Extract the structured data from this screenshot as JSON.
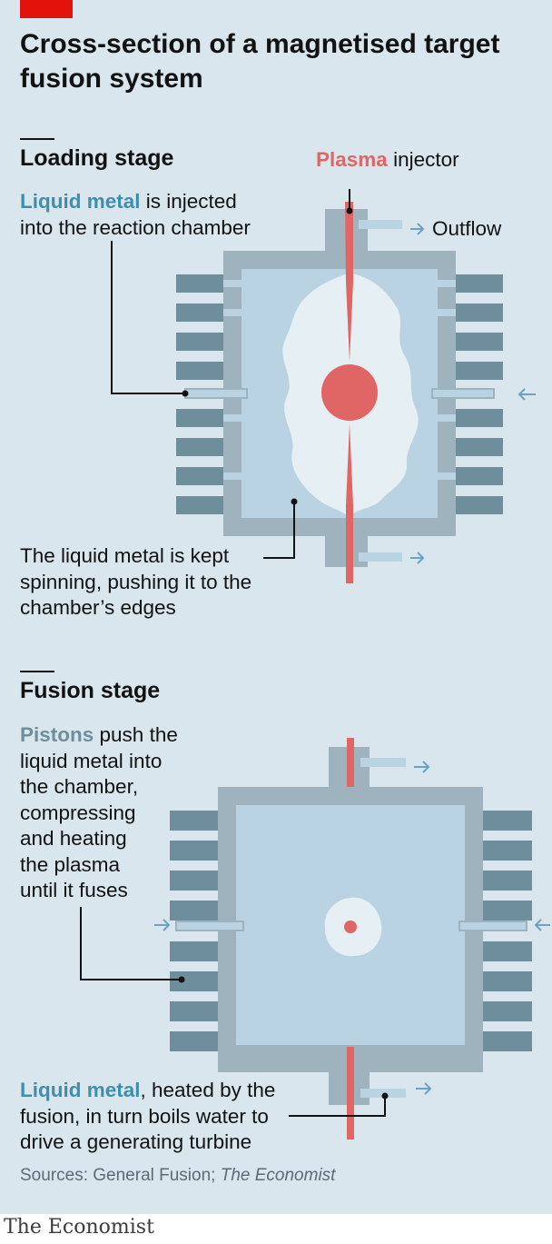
{
  "title": "Cross-section of a magnetised target fusion system",
  "loading": {
    "heading": "Loading stage",
    "plasma_injector": {
      "highlight": "Plasma",
      "rest": " injector"
    },
    "outflow": "Outflow",
    "liquid_note": {
      "highlight": "Liquid metal",
      "line1_rest": " is injected",
      "line2": "into the reaction chamber"
    },
    "spin_note": [
      "The liquid metal is kept",
      "spinning, pushing it to the",
      "chamber’s edges"
    ]
  },
  "fusion": {
    "heading": "Fusion stage",
    "piston_note": {
      "highlight": "Pistons",
      "line1_rest": " push the",
      "lines": [
        "liquid metal into",
        "the chamber,",
        "compressing",
        "and heating",
        "the plasma",
        "until it fuses"
      ]
    },
    "liquid_note": {
      "highlight": "Liquid metal",
      "line1_rest": ", heated by the",
      "line2": "fusion, in turn boils water to",
      "line3": "drive a generating turbine"
    }
  },
  "sources": {
    "prefix": "Sources: General Fusion; ",
    "italic": "The Economist"
  },
  "brand": "The Economist",
  "colors": {
    "background": "#d9e6ee",
    "accent_red": "#e3120b",
    "plasma": "#e06565",
    "liquid_metal": "#3d8fae",
    "piston": "#6e8e9c",
    "chamber_wall": "#9fb3bf",
    "chamber_fill": "#b9d3e2"
  }
}
